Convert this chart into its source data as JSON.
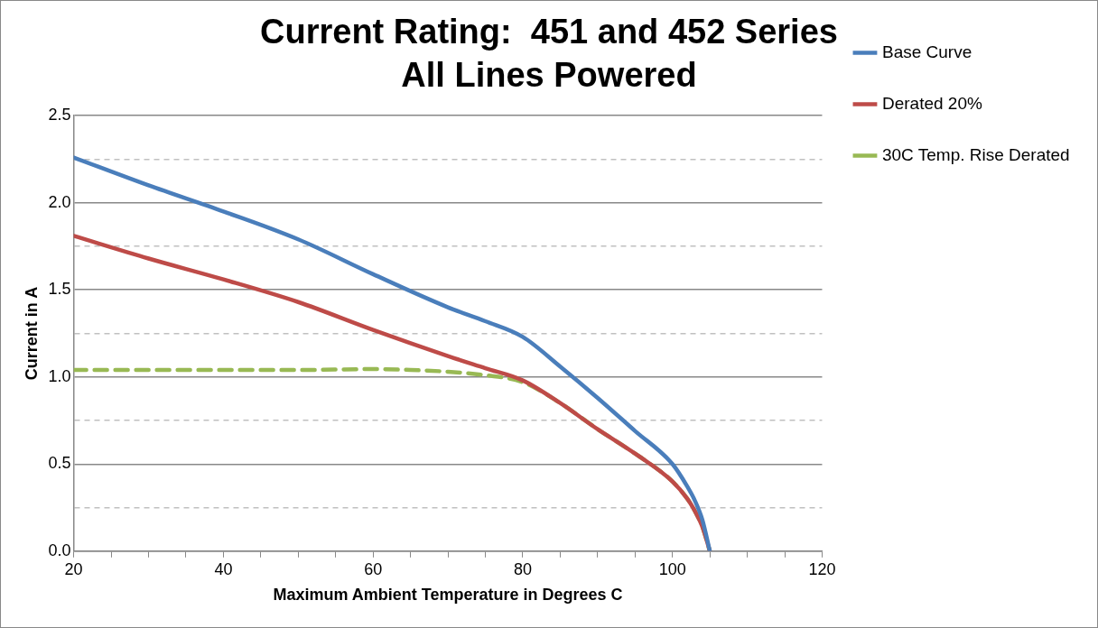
{
  "chart_data": {
    "type": "line",
    "title": "Current Rating:  451 and 452 Series",
    "subtitle": "All Lines Powered",
    "xlabel": "Maximum Ambient Temperature in Degrees C",
    "ylabel": "Current in A",
    "xlim": [
      20,
      120
    ],
    "ylim": [
      0,
      2.5
    ],
    "xticks": [
      20,
      {
        "value": 25,
        "label": null
      },
      {
        "value": 30,
        "label": null
      },
      {
        "value": 35,
        "label": null
      },
      40,
      {
        "value": 45,
        "label": null
      },
      {
        "value": 50,
        "label": null
      },
      {
        "value": 55,
        "label": null
      },
      60,
      {
        "value": 65,
        "label": null
      },
      {
        "value": 70,
        "label": null
      },
      {
        "value": 75,
        "label": null
      },
      80,
      {
        "value": 85,
        "label": null
      },
      {
        "value": 90,
        "label": null
      },
      {
        "value": 95,
        "label": null
      },
      100,
      {
        "value": 105,
        "label": null
      },
      {
        "value": 110,
        "label": null
      },
      {
        "value": 115,
        "label": null
      },
      120
    ],
    "yticks": [
      {
        "value": 0,
        "label": "0.0"
      },
      {
        "value": 0.25,
        "label": null
      },
      {
        "value": 0.5,
        "label": "0.5"
      },
      {
        "value": 0.75,
        "label": null
      },
      {
        "value": 1,
        "label": "1.0"
      },
      {
        "value": 1.25,
        "label": null
      },
      {
        "value": 1.5,
        "label": "1.5"
      },
      {
        "value": 1.75,
        "label": null
      },
      {
        "value": 2,
        "label": "2.0"
      },
      {
        "value": 2.25,
        "label": null
      },
      {
        "value": 2.5,
        "label": "2.5"
      }
    ],
    "grid": "y",
    "legend": "right",
    "marker": "none",
    "series": [
      {
        "name": "Base Curve",
        "color": "#4a7ebb",
        "line_style": "solid",
        "x": [
          20,
          30,
          40,
          50,
          60,
          70,
          75,
          80,
          85,
          90,
          95,
          100,
          102,
          103,
          104,
          105
        ],
        "values": [
          2.26,
          2.1,
          1.95,
          1.79,
          1.59,
          1.4,
          1.32,
          1.23,
          1.06,
          0.88,
          0.69,
          0.5,
          0.37,
          0.29,
          0.18,
          0
        ]
      },
      {
        "name": "Derated 20%",
        "color": "#be4b48",
        "line_style": "solid",
        "x": [
          20,
          30,
          40,
          50,
          60,
          70,
          75,
          80,
          85,
          90,
          95,
          100,
          102,
          103,
          104,
          105
        ],
        "values": [
          1.81,
          1.68,
          1.56,
          1.43,
          1.27,
          1.12,
          1.05,
          0.98,
          0.85,
          0.7,
          0.56,
          0.4,
          0.3,
          0.23,
          0.14,
          0
        ]
      },
      {
        "name": "30C Temp. Rise Derated",
        "color": "#98b954",
        "line_style": "dashed",
        "x": [
          20,
          30,
          40,
          50,
          60,
          65,
          70,
          75,
          80,
          85,
          90,
          95,
          100,
          102,
          103,
          104,
          105
        ],
        "values": [
          1.04,
          1.04,
          1.04,
          1.04,
          1.045,
          1.04,
          1.03,
          1.01,
          0.97,
          0.85,
          0.7,
          0.56,
          0.4,
          0.3,
          0.23,
          0.14,
          0
        ]
      }
    ]
  }
}
